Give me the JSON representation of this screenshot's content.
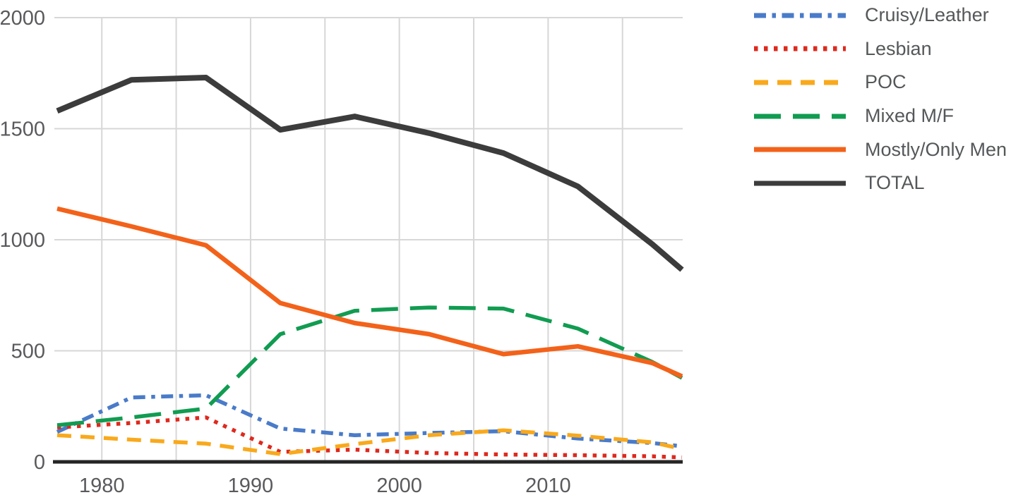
{
  "chart_data": {
    "type": "line",
    "title": "",
    "xlabel": "",
    "ylabel": "",
    "xlim": [
      1977,
      2019
    ],
    "ylim": [
      0,
      2000
    ],
    "grid": true,
    "legend_position": "right",
    "x": [
      1977,
      1982,
      1987,
      1992,
      1997,
      2002,
      2007,
      2012,
      2017,
      2019
    ],
    "x_gridline_years": [
      1980,
      1985,
      1990,
      1995,
      2000,
      2005,
      2010,
      2015
    ],
    "x_ticks": [
      {
        "label": "1980",
        "year": 1980
      },
      {
        "label": "1990",
        "year": 1990
      },
      {
        "label": "2000",
        "year": 2000
      },
      {
        "label": "2010",
        "year": 2010
      }
    ],
    "y_ticks": [
      {
        "label": "0",
        "value": 0
      },
      {
        "label": "500",
        "value": 500
      },
      {
        "label": "1000",
        "value": 1000
      },
      {
        "label": "1500",
        "value": 1500
      },
      {
        "label": "2000",
        "value": 2000
      }
    ],
    "series": [
      {
        "name": "Cruisy/Leather",
        "color": "#4a7bc9",
        "style": "dash-dot",
        "values": [
          135,
          290,
          300,
          150,
          120,
          130,
          138,
          105,
          85,
          70
        ]
      },
      {
        "name": "Lesbian",
        "color": "#de291e",
        "style": "dotted",
        "values": [
          155,
          175,
          200,
          45,
          55,
          40,
          33,
          30,
          25,
          20
        ]
      },
      {
        "name": "POC",
        "color": "#f9a91c",
        "style": "dashed",
        "values": [
          120,
          100,
          82,
          35,
          80,
          120,
          142,
          118,
          88,
          58
        ]
      },
      {
        "name": "Mixed M/F",
        "color": "#119c51",
        "style": "long-dash",
        "values": [
          165,
          200,
          240,
          575,
          680,
          695,
          690,
          600,
          450,
          378
        ]
      },
      {
        "name": "Mostly/Only Men",
        "color": "#f3621a",
        "style": "solid",
        "values": [
          1140,
          1060,
          975,
          715,
          625,
          575,
          485,
          520,
          445,
          385
        ]
      },
      {
        "name": "TOTAL",
        "color": "#3c3c3c",
        "style": "solid-thick",
        "values": [
          1580,
          1720,
          1730,
          1495,
          1555,
          1480,
          1390,
          1240,
          980,
          865
        ]
      }
    ]
  },
  "colors": {
    "background": "#ffffff",
    "gridline": "#d7d7d7",
    "axis_line": "#252525",
    "tick_label": "#5a5a5e",
    "legend_text": "#55585a"
  }
}
